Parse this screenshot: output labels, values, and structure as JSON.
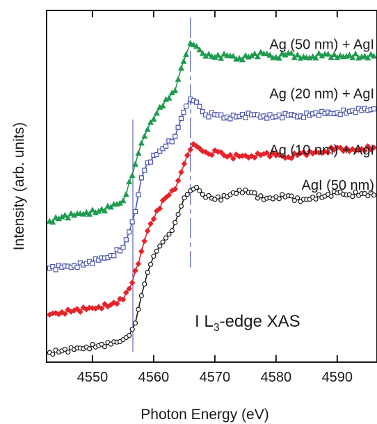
{
  "chart_data": {
    "type": "line",
    "title": "",
    "xlabel": "Photon Energy (eV)",
    "ylabel": "Intensity (arb. units)",
    "xlim": [
      4542.5,
      4596.5
    ],
    "ylim": [
      0,
      1
    ],
    "x_ticks": [
      4550,
      4560,
      4570,
      4580,
      4590
    ],
    "x_tick_labels": [
      "4550",
      "4560",
      "4570",
      "4580",
      "4590"
    ],
    "y_ticks_labeled": false,
    "grid": false,
    "legend": "inline labels at top-right of each curve",
    "annotation": {
      "prefix": "I L",
      "subscript": "3",
      "suffix": "-edge XAS"
    },
    "reference_lines": [
      {
        "x": 4556.6,
        "y_from": 0.03,
        "y_to": 0.69,
        "style": "solid",
        "color": "#5b64b8"
      },
      {
        "x": 4566.0,
        "y_from": 0.27,
        "y_to": 0.98,
        "style": "dashed",
        "color": "#5b64b8"
      }
    ],
    "series": [
      {
        "name": "Ag (50 nm) + AgI",
        "color": "#1f9a4e",
        "marker": "triangle",
        "fill": "#1f9a4e",
        "points": [
          [
            4543.0,
            0.401
          ],
          [
            4545.0,
            0.413
          ],
          [
            4547.0,
            0.418
          ],
          [
            4549.0,
            0.426
          ],
          [
            4551.0,
            0.429
          ],
          [
            4553.0,
            0.441
          ],
          [
            4555.0,
            0.459
          ],
          [
            4556.5,
            0.531
          ],
          [
            4558.0,
            0.623
          ],
          [
            4559.0,
            0.662
          ],
          [
            4560.5,
            0.708
          ],
          [
            4562.0,
            0.747
          ],
          [
            4563.5,
            0.772
          ],
          [
            4564.5,
            0.836
          ],
          [
            4565.3,
            0.875
          ],
          [
            4566.0,
            0.907
          ],
          [
            4567.0,
            0.898
          ],
          [
            4568.0,
            0.878
          ],
          [
            4570.0,
            0.867
          ],
          [
            4572.0,
            0.872
          ],
          [
            4574.0,
            0.864
          ],
          [
            4576.0,
            0.871
          ],
          [
            4578.0,
            0.877
          ],
          [
            4580.0,
            0.867
          ],
          [
            4582.0,
            0.879
          ],
          [
            4584.0,
            0.864
          ],
          [
            4586.0,
            0.869
          ],
          [
            4588.0,
            0.876
          ],
          [
            4590.0,
            0.866
          ],
          [
            4592.0,
            0.873
          ],
          [
            4594.0,
            0.868
          ],
          [
            4596.0,
            0.87
          ]
        ]
      },
      {
        "name": "Ag (20 nm) + AgI",
        "color": "#4a56b0",
        "marker": "square",
        "fill": "#ffffff",
        "points": [
          [
            4543.0,
            0.267
          ],
          [
            4545.0,
            0.27
          ],
          [
            4547.0,
            0.274
          ],
          [
            4549.0,
            0.281
          ],
          [
            4551.0,
            0.29
          ],
          [
            4553.0,
            0.303
          ],
          [
            4555.0,
            0.326
          ],
          [
            4556.0,
            0.37
          ],
          [
            4557.0,
            0.428
          ],
          [
            4558.0,
            0.524
          ],
          [
            4559.0,
            0.567
          ],
          [
            4560.5,
            0.59
          ],
          [
            4562.0,
            0.614
          ],
          [
            4563.5,
            0.642
          ],
          [
            4564.5,
            0.693
          ],
          [
            4565.3,
            0.728
          ],
          [
            4566.0,
            0.748
          ],
          [
            4567.0,
            0.739
          ],
          [
            4568.5,
            0.703
          ],
          [
            4570.0,
            0.704
          ],
          [
            4572.0,
            0.697
          ],
          [
            4574.0,
            0.699
          ],
          [
            4576.0,
            0.703
          ],
          [
            4578.0,
            0.7
          ],
          [
            4580.0,
            0.698
          ],
          [
            4582.0,
            0.702
          ],
          [
            4584.0,
            0.7
          ],
          [
            4586.0,
            0.706
          ],
          [
            4588.0,
            0.707
          ],
          [
            4590.0,
            0.709
          ],
          [
            4592.0,
            0.713
          ],
          [
            4594.0,
            0.716
          ],
          [
            4596.0,
            0.72
          ]
        ]
      },
      {
        "name": "Ag (10 nm) + AgI",
        "color": "#e5232b",
        "marker": "diamond",
        "fill": "#e5232b",
        "points": [
          [
            4543.0,
            0.135
          ],
          [
            4545.0,
            0.142
          ],
          [
            4547.0,
            0.147
          ],
          [
            4549.0,
            0.15
          ],
          [
            4551.0,
            0.157
          ],
          [
            4553.0,
            0.163
          ],
          [
            4555.0,
            0.178
          ],
          [
            4556.5,
            0.226
          ],
          [
            4558.0,
            0.315
          ],
          [
            4559.0,
            0.373
          ],
          [
            4560.5,
            0.43
          ],
          [
            4562.0,
            0.468
          ],
          [
            4563.5,
            0.492
          ],
          [
            4564.5,
            0.54
          ],
          [
            4565.5,
            0.588
          ],
          [
            4566.5,
            0.62
          ],
          [
            4567.5,
            0.608
          ],
          [
            4569.0,
            0.592
          ],
          [
            4570.5,
            0.598
          ],
          [
            4572.0,
            0.584
          ],
          [
            4574.0,
            0.585
          ],
          [
            4576.0,
            0.586
          ],
          [
            4578.0,
            0.592
          ],
          [
            4580.0,
            0.588
          ],
          [
            4582.0,
            0.583
          ],
          [
            4584.0,
            0.594
          ],
          [
            4586.0,
            0.593
          ],
          [
            4588.0,
            0.599
          ],
          [
            4590.0,
            0.61
          ],
          [
            4592.0,
            0.6
          ],
          [
            4594.0,
            0.606
          ],
          [
            4596.0,
            0.61
          ]
        ]
      },
      {
        "name": "AgI (50 nm)",
        "color": "#1a1a1a",
        "marker": "circle",
        "fill": "#ffffff",
        "points": [
          [
            4543.0,
            0.027
          ],
          [
            4545.0,
            0.032
          ],
          [
            4547.0,
            0.036
          ],
          [
            4549.0,
            0.043
          ],
          [
            4551.0,
            0.047
          ],
          [
            4553.0,
            0.051
          ],
          [
            4555.0,
            0.064
          ],
          [
            4556.0,
            0.076
          ],
          [
            4557.0,
            0.111
          ],
          [
            4558.0,
            0.189
          ],
          [
            4559.0,
            0.255
          ],
          [
            4560.0,
            0.301
          ],
          [
            4561.0,
            0.33
          ],
          [
            4562.0,
            0.353
          ],
          [
            4563.0,
            0.374
          ],
          [
            4564.0,
            0.42
          ],
          [
            4565.0,
            0.467
          ],
          [
            4566.0,
            0.487
          ],
          [
            4567.0,
            0.497
          ],
          [
            4568.0,
            0.477
          ],
          [
            4570.0,
            0.463
          ],
          [
            4572.0,
            0.47
          ],
          [
            4574.0,
            0.489
          ],
          [
            4576.0,
            0.482
          ],
          [
            4578.0,
            0.462
          ],
          [
            4580.0,
            0.47
          ],
          [
            4582.0,
            0.473
          ],
          [
            4584.0,
            0.457
          ],
          [
            4586.0,
            0.469
          ],
          [
            4588.0,
            0.472
          ],
          [
            4590.0,
            0.481
          ],
          [
            4592.0,
            0.476
          ],
          [
            4594.0,
            0.479
          ],
          [
            4596.0,
            0.475
          ]
        ]
      }
    ]
  }
}
